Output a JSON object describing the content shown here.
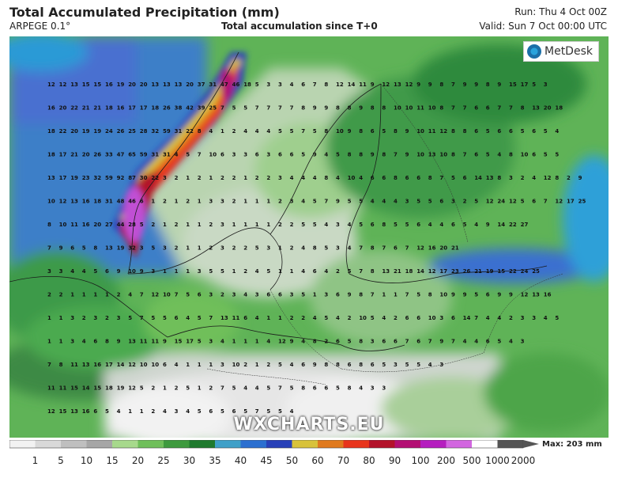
{
  "header": {
    "title": "Total Accumulated Precipitation (mm)",
    "model": "ARPEGE 0.1°",
    "subtitle": "Total accumulation since T+0",
    "run": "Run: Thu 4 Oct 00Z",
    "valid": "Valid: Sun 7 Oct 00:00 UTC"
  },
  "logo": {
    "text": "MetDesk"
  },
  "watermark": "WXCHARTS.EU",
  "legend": {
    "max_label": "Max: 203 mm",
    "ticks": [
      "1",
      "5",
      "10",
      "15",
      "20",
      "25",
      "30",
      "35",
      "40",
      "45",
      "50",
      "60",
      "70",
      "80",
      "90",
      "100",
      "200",
      "500",
      "1000",
      "2000"
    ],
    "colors": [
      "#f2f2f2",
      "#d9d9d9",
      "#bfbfbf",
      "#a6a6a6",
      "#a7d98c",
      "#6fbf5a",
      "#3e9a3e",
      "#1f7a2e",
      "#3fa0c8",
      "#2b6fd0",
      "#2840b8",
      "#d8c23a",
      "#e07a1e",
      "#e8341c",
      "#b3122a",
      "#b30f73",
      "#b51dbf",
      "#d266e0",
      "#ffffff",
      "#555555"
    ]
  },
  "map": {
    "value_rows": [
      "12 12 13 15 15 16 19 20 20 13 13 13 20 37 31 47 46 18 5 3 3 4 6 7 8 12 14 11 9 12 13 12 9 9 8 7 9 9 8 9 15 17 5 3",
      "16 20 22 21 21 18 16 17 17 18 26 38 42 39 25 7 5 5 7 7 7 7 8 9 9 8 8 9 8 8 10 10 11 10 8 7 7 6 6 7 7 8 13 20 18",
      "18 22 20 19 19 24 26 25 28 32 59 31 22 8 4 1 2 4 4 4 5 5 7 5 8 10 9 8 6 5 8 9 10 11 12 8 8 6 5 6 6 5 6 5 4",
      "18 17 21 20 26 33 47 65 59 31 31 4 5 7 10 6 3 3 6 3 6 6 5 9 4 5 8 8 9 8 7 9 10 13 10 8 7 6 5 4 8 10 6 5 5",
      "13 17 19 23 32 59 92 87 30 22 3 2 1 2 1 2 2 1 2 2 3 4 4 4 8 4 10 4 6 6 8 6 6 8 7 5 6 14 13 8 3 2 4 12 8 2 9",
      "10 12 13 16 18 31 48 46 6 1 2 1 2 1 3 3 2 1 1 1 2 3 4 5 7 9 5 5 4 4 4 3 5 5 6 3 2 5 12 24 12 5 6 7 12 17 25",
      "8 10 11 16 20 27 44 28 5 2 1 2 1 1 2 3 1 1 1 1 2 2 5 5 4 3 4 5 6 8 5 5 6 4 4 6 5 4 9 14 22 27",
      "7 9 6 5 8 13 19 32 3 5 3 2 1 1 2 3 2 2 5 3 1 2 4 8 5 3 4 7 8 7 6 7 12 16 20 21",
      "3 3 4 4 5 6 9 10 9 3 1 1 1 3 5 5 1 2 4 5 1 1 4 6 4 2 5 7 8 13 21 18 14 12 17 23 26 21 19 15 22 24 25",
      "2 2 1 1 1 1 2 4 7 12 10 7 5 6 3 2 3 4 3 6 6 3 5 1 3 6 9 8 7 1 1 7 5 8 10 9 9 5 6 9 9 12 13 16",
      "1 1 3 2 3 2 3 5 7 5 5 6 4 5 7 13 11 6 4 1 1 2 2 4 5 4 2 10 5 4 2 6 6 10 3 6 14 7 4 4 2 3 3 4 5",
      "1 1 3 4 6 8 9 13 11 11 9 15 17 5 3 4 1 1 1 4 12 9 4 8 2 6 5 8 3 6 6 7 6 7 9 7 4 4 6 5 4 3",
      "7 8 11 13 16 17 14 12 10 10 6 4 1 1 1 3 10 2 1 2 5 4 6 9 8 8 6 8 6 5 3 5 5 4 3",
      "11 11 15 14 15 18 19 12 5 2 1 2 5 1 2 7 5 4 4 5 7 5 8 6 6 5 8 4 3 3",
      "12 15 13 16 6 5 4 1 1 2 4 3 4 5 6 5 6 5 7 5 5 4"
    ]
  }
}
